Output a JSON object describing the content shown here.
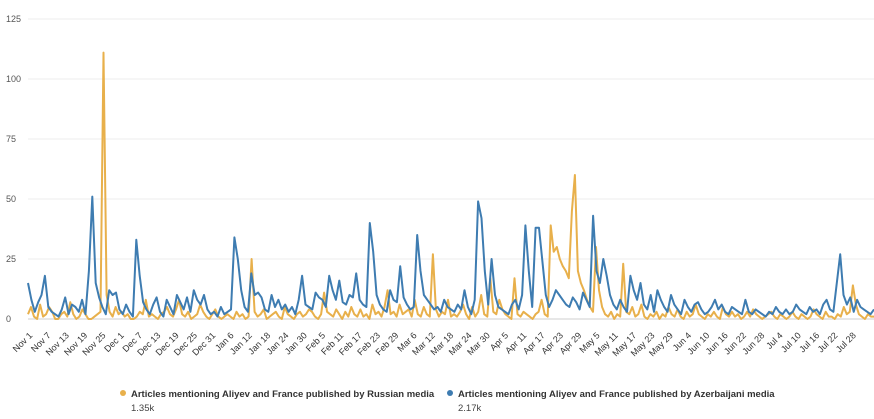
{
  "chart_data": {
    "type": "line",
    "yticks": [
      0,
      25,
      50,
      75,
      100,
      125
    ],
    "ylim": [
      0,
      125
    ],
    "grid": "horizontal",
    "legend_position": "bottom",
    "xticklabels": [
      "Nov 1",
      "Nov 7",
      "Nov 13",
      "Nov 19",
      "Nov 25",
      "Dec 1",
      "Dec 7",
      "Dec 13",
      "Dec 19",
      "Dec 25",
      "Dec 31",
      "Jan 6",
      "Jan 12",
      "Jan 18",
      "Jan 24",
      "Jan 30",
      "Feb 5",
      "Feb 11",
      "Feb 17",
      "Feb 23",
      "Feb 29",
      "Mar 6",
      "Mar 12",
      "Mar 18",
      "Mar 24",
      "Mar 30",
      "Apr 5",
      "Apr 11",
      "Apr 17",
      "Apr 23",
      "Apr 29",
      "May 5",
      "May 11",
      "May 17",
      "May 23",
      "May 29",
      "Jun 4",
      "Jun 10",
      "Jun 16",
      "Jun 22",
      "Jun 28",
      "Jul 4",
      "Jul 10",
      "Jul 16",
      "Jul 22",
      "Jul 28"
    ],
    "series": [
      {
        "name": "Articles mentioning Aliyev and France published by Russian media",
        "total": "1.35k",
        "color": "#E8B04B",
        "values": [
          2,
          5,
          1,
          0,
          6,
          1,
          2,
          5,
          3,
          0,
          0,
          2,
          3,
          1,
          7,
          2,
          0,
          1,
          4,
          2,
          0,
          0,
          1,
          2,
          3,
          111,
          10,
          3,
          1,
          5,
          2,
          3,
          1,
          2,
          0,
          0,
          1,
          3,
          2,
          8,
          1,
          2,
          1,
          0,
          2,
          3,
          5,
          2,
          1,
          4,
          8,
          2,
          1,
          3,
          0,
          1,
          2,
          6,
          3,
          1,
          0,
          2,
          4,
          1,
          0,
          1,
          2,
          1,
          0,
          3,
          1,
          2,
          0,
          1,
          25,
          3,
          1,
          2,
          4,
          0,
          1,
          2,
          3,
          1,
          0,
          5,
          2,
          1,
          0,
          2,
          3,
          1,
          2,
          4,
          3,
          1,
          0,
          2,
          11,
          3,
          2,
          1,
          4,
          2,
          0,
          3,
          1,
          5,
          2,
          1,
          4,
          1,
          2,
          0,
          6,
          2,
          3,
          1,
          5,
          12,
          2,
          3,
          1,
          6,
          2,
          3,
          4,
          1,
          8,
          2,
          1,
          5,
          2,
          1,
          27,
          4,
          1,
          3,
          2,
          8,
          1,
          2,
          1,
          3,
          6,
          2,
          0,
          5,
          1,
          3,
          10,
          2,
          1,
          17,
          3,
          2,
          8,
          4,
          2,
          1,
          0,
          17,
          2,
          1,
          3,
          2,
          1,
          0,
          2,
          3,
          8,
          2,
          1,
          39,
          28,
          30,
          25,
          22,
          20,
          17,
          45,
          60,
          20,
          15,
          12,
          8,
          5,
          3,
          30,
          12,
          5,
          2,
          1,
          3,
          0,
          2,
          1,
          23,
          3,
          2,
          5,
          1,
          2,
          6,
          1,
          0,
          2,
          1,
          3,
          0,
          2,
          1,
          5,
          2,
          1,
          4,
          1,
          0,
          3,
          1,
          2,
          6,
          2,
          1,
          0,
          2,
          1,
          3,
          1,
          0,
          5,
          2,
          1,
          3,
          1,
          2,
          0,
          1,
          3,
          1,
          4,
          2,
          1,
          0,
          1,
          2,
          3,
          1,
          0,
          2,
          1,
          0,
          1,
          3,
          1,
          0,
          2,
          1,
          0,
          1,
          4,
          2,
          1,
          0,
          3,
          1,
          1,
          0,
          2,
          1,
          5,
          2,
          3,
          14,
          6,
          2,
          1,
          0,
          2,
          1,
          1
        ]
      },
      {
        "name": "Articles mentioning Aliyev and France published by Azerbaijani media",
        "total": "2.17k",
        "color": "#3E7CB1",
        "values": [
          15,
          8,
          3,
          7,
          10,
          18,
          5,
          3,
          2,
          1,
          4,
          9,
          2,
          6,
          5,
          3,
          8,
          2,
          20,
          51,
          15,
          9,
          5,
          2,
          12,
          10,
          11,
          4,
          2,
          6,
          3,
          1,
          33,
          18,
          7,
          4,
          2,
          6,
          9,
          3,
          1,
          8,
          5,
          2,
          10,
          7,
          4,
          9,
          3,
          12,
          8,
          6,
          10,
          4,
          2,
          3,
          1,
          5,
          2,
          3,
          4,
          34,
          25,
          12,
          5,
          3,
          19,
          10,
          11,
          9,
          4,
          3,
          10,
          5,
          8,
          4,
          6,
          3,
          5,
          2,
          8,
          18,
          6,
          5,
          4,
          11,
          9,
          8,
          5,
          18,
          12,
          8,
          16,
          7,
          6,
          10,
          9,
          19,
          8,
          6,
          5,
          40,
          28,
          10,
          6,
          4,
          3,
          12,
          8,
          7,
          22,
          9,
          6,
          4,
          5,
          35,
          20,
          10,
          8,
          6,
          4,
          5,
          3,
          8,
          5,
          4,
          3,
          6,
          4,
          12,
          5,
          2,
          8,
          49,
          42,
          20,
          6,
          25,
          10,
          5,
          4,
          3,
          2,
          6,
          8,
          4,
          10,
          39,
          20,
          5,
          38,
          38,
          24,
          10,
          5,
          8,
          12,
          10,
          8,
          6,
          5,
          9,
          7,
          4,
          11,
          8,
          5,
          43,
          20,
          15,
          25,
          18,
          10,
          6,
          4,
          8,
          5,
          3,
          18,
          12,
          8,
          15,
          6,
          4,
          10,
          3,
          12,
          8,
          5,
          3,
          10,
          6,
          4,
          2,
          8,
          5,
          3,
          6,
          7,
          4,
          2,
          3,
          5,
          8,
          4,
          6,
          3,
          2,
          5,
          4,
          3,
          2,
          8,
          3,
          2,
          4,
          3,
          2,
          1,
          3,
          2,
          5,
          3,
          2,
          4,
          2,
          3,
          6,
          4,
          3,
          2,
          5,
          3,
          4,
          2,
          6,
          8,
          4,
          3,
          15,
          27,
          10,
          6,
          9,
          3,
          8,
          5,
          4,
          3,
          2,
          4
        ]
      }
    ]
  }
}
